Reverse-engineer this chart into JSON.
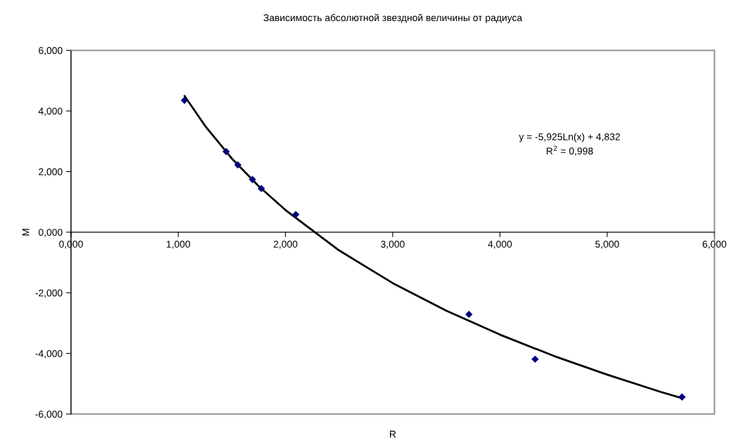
{
  "chart_data": {
    "type": "scatter",
    "title": "Зависимость абсолютной звездной величины от радиуса",
    "xlabel": "R",
    "ylabel": "M",
    "x": [
      1.058,
      1.447,
      1.556,
      1.692,
      1.775,
      2.096,
      3.711,
      4.328,
      5.698
    ],
    "series": [
      {
        "color": "#000080",
        "marker": "diamond",
        "values": [
          4.35,
          2.66,
          2.22,
          1.74,
          1.44,
          0.58,
          -2.71,
          -4.19,
          -5.44
        ]
      },
      {
        "type": "line",
        "color": "#000000",
        "marker": "none",
        "line_style": "solid",
        "x": [
          1.06,
          1.25,
          1.5,
          1.75,
          2.0,
          2.5,
          3.0,
          3.5,
          4.0,
          4.5,
          5.0,
          5.5,
          5.7
        ],
        "values": [
          4.49,
          3.51,
          2.43,
          1.52,
          0.73,
          -0.6,
          -1.68,
          -2.59,
          -3.38,
          -4.08,
          -4.7,
          -5.27,
          -5.48
        ]
      }
    ],
    "xlim": [
      0,
      6
    ],
    "ylim": [
      -6,
      6
    ],
    "xticks": [
      {
        "value": 0,
        "label": "0,000"
      },
      {
        "value": 1,
        "label": "1,000"
      },
      {
        "value": 2,
        "label": "2,000"
      },
      {
        "value": 3,
        "label": "3,000"
      },
      {
        "value": 4,
        "label": "4,000"
      },
      {
        "value": 5,
        "label": "5,000"
      },
      {
        "value": 6,
        "label": "6,000"
      }
    ],
    "yticks": [
      {
        "value": -6,
        "label": "-6,000"
      },
      {
        "value": -4,
        "label": "-4,000"
      },
      {
        "value": -2,
        "label": "-2,000"
      },
      {
        "value": 0,
        "label": "0,000"
      },
      {
        "value": 2,
        "label": "2,000"
      },
      {
        "value": 4,
        "label": "4,000"
      },
      {
        "value": 6,
        "label": "6,000"
      }
    ],
    "annotations": [
      "y = -5,925Ln(x) + 4,832",
      "R$^{2}$ = 0,998"
    ],
    "grid": false,
    "legend": false
  }
}
